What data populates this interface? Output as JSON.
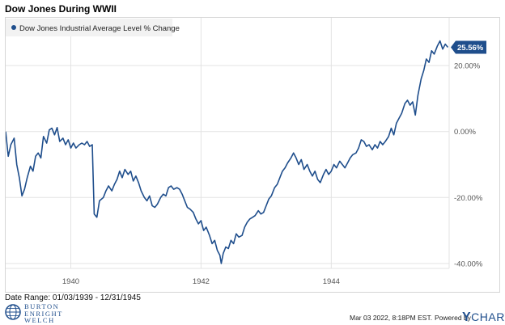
{
  "title": "Dow Jones During WWII",
  "date_range": "Date Range: 01/03/1939 - 12/31/1945",
  "timestamp": "Mar 03 2022, 8:18PM EST.",
  "powered_by": "Powered by",
  "ycharts_brand": {
    "y": "Y",
    "rest": "CHARTS"
  },
  "firm_name": [
    "BURTON",
    "ENRIGHT",
    "WELCH"
  ],
  "colors": {
    "line": "#1f4e8c",
    "grid": "#e3e3e3",
    "axis_text": "#555555",
    "badge_bg": "#1f4e8c",
    "badge_text": "#ffffff"
  },
  "chart_data": {
    "type": "line",
    "title": "Dow Jones During WWII",
    "legend_position": "top-left",
    "grid": true,
    "series": [
      {
        "name": "Dow Jones Industrial Average Level % Change",
        "last_value_label": "25.56%",
        "points": [
          [
            1939.0,
            0.0
          ],
          [
            1939.04,
            -7.5
          ],
          [
            1939.08,
            -4.0
          ],
          [
            1939.13,
            -2.0
          ],
          [
            1939.17,
            -10.0
          ],
          [
            1939.21,
            -14.0
          ],
          [
            1939.25,
            -19.5
          ],
          [
            1939.29,
            -17.5
          ],
          [
            1939.33,
            -14.0
          ],
          [
            1939.38,
            -10.5
          ],
          [
            1939.42,
            -12.0
          ],
          [
            1939.46,
            -7.5
          ],
          [
            1939.5,
            -6.5
          ],
          [
            1939.54,
            -8.0
          ],
          [
            1939.58,
            -1.5
          ],
          [
            1939.63,
            -3.5
          ],
          [
            1939.67,
            0.5
          ],
          [
            1939.71,
            1.0
          ],
          [
            1939.75,
            -1.0
          ],
          [
            1939.79,
            1.2
          ],
          [
            1939.83,
            -3.0
          ],
          [
            1939.88,
            -2.0
          ],
          [
            1939.92,
            -4.0
          ],
          [
            1939.96,
            -2.5
          ],
          [
            1940.0,
            -5.0
          ],
          [
            1940.04,
            -3.5
          ],
          [
            1940.08,
            -5.0
          ],
          [
            1940.13,
            -4.0
          ],
          [
            1940.17,
            -3.5
          ],
          [
            1940.21,
            -4.0
          ],
          [
            1940.25,
            -3.0
          ],
          [
            1940.29,
            -4.5
          ],
          [
            1940.33,
            -4.0
          ],
          [
            1940.36,
            -25.0
          ],
          [
            1940.4,
            -26.0
          ],
          [
            1940.44,
            -21.0
          ],
          [
            1940.5,
            -20.0
          ],
          [
            1940.54,
            -18.0
          ],
          [
            1940.58,
            -16.5
          ],
          [
            1940.63,
            -18.0
          ],
          [
            1940.67,
            -16.0
          ],
          [
            1940.71,
            -14.5
          ],
          [
            1940.75,
            -12.0
          ],
          [
            1940.79,
            -14.0
          ],
          [
            1940.83,
            -11.5
          ],
          [
            1940.88,
            -13.0
          ],
          [
            1940.92,
            -12.0
          ],
          [
            1940.96,
            -15.0
          ],
          [
            1941.0,
            -13.5
          ],
          [
            1941.04,
            -15.5
          ],
          [
            1941.08,
            -18.0
          ],
          [
            1941.13,
            -20.0
          ],
          [
            1941.17,
            -21.0
          ],
          [
            1941.21,
            -19.5
          ],
          [
            1941.25,
            -22.5
          ],
          [
            1941.29,
            -23.0
          ],
          [
            1941.33,
            -22.0
          ],
          [
            1941.38,
            -20.0
          ],
          [
            1941.42,
            -19.0
          ],
          [
            1941.46,
            -19.5
          ],
          [
            1941.5,
            -17.0
          ],
          [
            1941.54,
            -16.5
          ],
          [
            1941.58,
            -17.5
          ],
          [
            1941.63,
            -17.0
          ],
          [
            1941.67,
            -17.5
          ],
          [
            1941.71,
            -19.0
          ],
          [
            1941.75,
            -21.0
          ],
          [
            1941.79,
            -23.0
          ],
          [
            1941.83,
            -23.5
          ],
          [
            1941.88,
            -24.5
          ],
          [
            1941.92,
            -26.5
          ],
          [
            1941.96,
            -28.0
          ],
          [
            1942.0,
            -27.0
          ],
          [
            1942.04,
            -30.0
          ],
          [
            1942.08,
            -29.0
          ],
          [
            1942.13,
            -31.5
          ],
          [
            1942.17,
            -34.0
          ],
          [
            1942.21,
            -33.0
          ],
          [
            1942.25,
            -36.0
          ],
          [
            1942.29,
            -37.5
          ],
          [
            1942.31,
            -40.0
          ],
          [
            1942.34,
            -37.0
          ],
          [
            1942.38,
            -35.0
          ],
          [
            1942.42,
            -35.5
          ],
          [
            1942.46,
            -33.0
          ],
          [
            1942.5,
            -34.0
          ],
          [
            1942.54,
            -31.0
          ],
          [
            1942.58,
            -32.0
          ],
          [
            1942.63,
            -31.5
          ],
          [
            1942.67,
            -29.0
          ],
          [
            1942.71,
            -27.5
          ],
          [
            1942.75,
            -26.5
          ],
          [
            1942.79,
            -26.0
          ],
          [
            1942.83,
            -25.5
          ],
          [
            1942.88,
            -24.0
          ],
          [
            1942.92,
            -25.0
          ],
          [
            1942.96,
            -24.5
          ],
          [
            1943.0,
            -22.5
          ],
          [
            1943.04,
            -20.5
          ],
          [
            1943.08,
            -19.5
          ],
          [
            1943.13,
            -17.0
          ],
          [
            1943.17,
            -16.0
          ],
          [
            1943.21,
            -14.0
          ],
          [
            1943.25,
            -12.0
          ],
          [
            1943.29,
            -11.0
          ],
          [
            1943.33,
            -9.5
          ],
          [
            1943.38,
            -8.0
          ],
          [
            1943.42,
            -6.5
          ],
          [
            1943.46,
            -8.0
          ],
          [
            1943.5,
            -10.0
          ],
          [
            1943.54,
            -8.5
          ],
          [
            1943.58,
            -11.5
          ],
          [
            1943.63,
            -10.0
          ],
          [
            1943.67,
            -12.0
          ],
          [
            1943.71,
            -13.5
          ],
          [
            1943.75,
            -12.0
          ],
          [
            1943.79,
            -14.5
          ],
          [
            1943.83,
            -15.5
          ],
          [
            1943.88,
            -13.0
          ],
          [
            1943.92,
            -11.5
          ],
          [
            1943.96,
            -13.0
          ],
          [
            1944.0,
            -12.0
          ],
          [
            1944.04,
            -10.0
          ],
          [
            1944.08,
            -11.0
          ],
          [
            1944.13,
            -9.0
          ],
          [
            1944.17,
            -10.0
          ],
          [
            1944.21,
            -11.0
          ],
          [
            1944.25,
            -9.5
          ],
          [
            1944.29,
            -8.0
          ],
          [
            1944.33,
            -7.0
          ],
          [
            1944.38,
            -6.5
          ],
          [
            1944.42,
            -5.0
          ],
          [
            1944.46,
            -2.5
          ],
          [
            1944.5,
            -3.0
          ],
          [
            1944.54,
            -4.5
          ],
          [
            1944.58,
            -4.0
          ],
          [
            1944.63,
            -5.5
          ],
          [
            1944.67,
            -4.0
          ],
          [
            1944.71,
            -5.0
          ],
          [
            1944.75,
            -3.0
          ],
          [
            1944.79,
            -4.0
          ],
          [
            1944.83,
            -3.0
          ],
          [
            1944.88,
            -1.5
          ],
          [
            1944.92,
            1.0
          ],
          [
            1944.96,
            -1.0
          ],
          [
            1945.0,
            2.5
          ],
          [
            1945.04,
            4.0
          ],
          [
            1945.08,
            5.5
          ],
          [
            1945.13,
            8.5
          ],
          [
            1945.17,
            9.5
          ],
          [
            1945.21,
            8.0
          ],
          [
            1945.25,
            9.0
          ],
          [
            1945.29,
            5.0
          ],
          [
            1945.33,
            11.0
          ],
          [
            1945.38,
            16.0
          ],
          [
            1945.42,
            18.5
          ],
          [
            1945.46,
            22.0
          ],
          [
            1945.5,
            21.0
          ],
          [
            1945.54,
            24.5
          ],
          [
            1945.58,
            23.5
          ],
          [
            1945.63,
            26.0
          ],
          [
            1945.67,
            27.5
          ],
          [
            1945.71,
            25.0
          ],
          [
            1945.75,
            26.5
          ],
          [
            1945.79,
            25.56
          ]
        ]
      }
    ],
    "x_ticks": [
      {
        "value": 1940,
        "label": "1940"
      },
      {
        "value": 1942,
        "label": "1942"
      },
      {
        "value": 1944,
        "label": "1944"
      }
    ],
    "y_ticks": [
      {
        "value": 20,
        "label": "20.00%"
      },
      {
        "value": 0,
        "label": "0.00%"
      },
      {
        "value": -20,
        "label": "-20.00%"
      },
      {
        "value": -40,
        "label": "-40.00%"
      }
    ],
    "xlim": [
      1939.0,
      1945.81
    ],
    "ylim": [
      -41.5,
      34.5
    ]
  }
}
